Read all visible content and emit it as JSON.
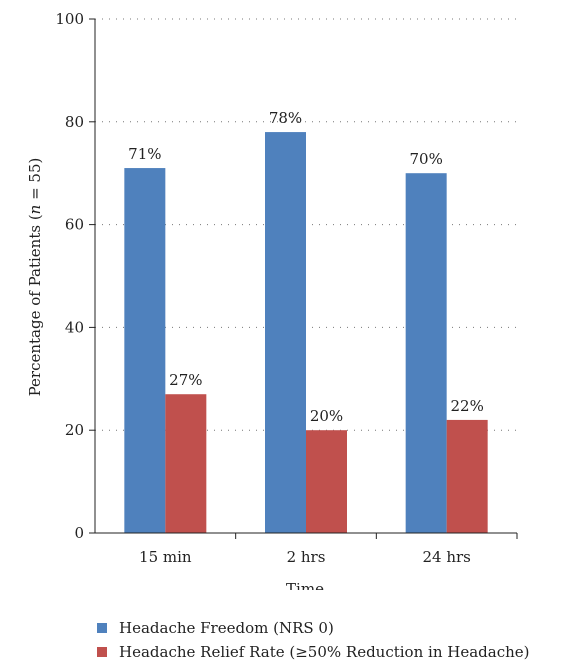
{
  "chart_data": {
    "type": "bar",
    "categories": [
      "15 min",
      "2 hrs",
      "24 hrs"
    ],
    "series": [
      {
        "name": "Headache Freedom (NRS 0)",
        "values": [
          71,
          78,
          70
        ],
        "labels": [
          "71%",
          "78%",
          "70%"
        ],
        "color": "#4F81BD"
      },
      {
        "name": "Headache Relief Rate (≥50% Reduction in Headache)",
        "values": [
          27,
          20,
          22
        ],
        "labels": [
          "27%",
          "20%",
          "22%"
        ],
        "color": "#C0504D"
      }
    ],
    "title": "",
    "xlabel": "Time",
    "ylabel": "Percentage of Patients (n = 55)",
    "ylim": [
      0,
      100
    ],
    "yticks": [
      0,
      20,
      40,
      60,
      80,
      100
    ],
    "grid": "dotted-horizontal",
    "legend": "bottom"
  }
}
